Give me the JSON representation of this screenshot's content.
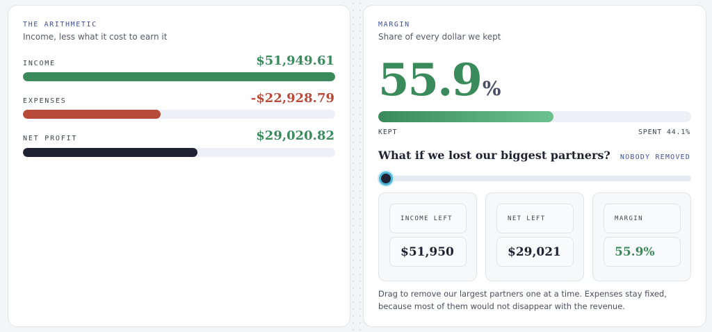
{
  "arithmetic": {
    "kicker": "THE ARITHMETIC",
    "subtitle": "Income, less what it cost to earn it",
    "rows": [
      {
        "label": "INCOME",
        "amount": "$51,949.61",
        "fraction": 1.0,
        "color": "#3a8a5c",
        "amount_color": "#3a8a5c"
      },
      {
        "label": "EXPENSES",
        "amount": "-$22,928.79",
        "fraction": 0.4414,
        "color": "#b84a3a",
        "amount_color": "#b84a3a"
      },
      {
        "label": "NET PROFIT",
        "amount": "$29,020.82",
        "fraction": 0.5586,
        "color": "#1f2233",
        "amount_color": "#3a8a5c"
      }
    ]
  },
  "margin": {
    "kicker": "MARGIN",
    "subtitle": "Share of every dollar we kept",
    "value": "55.9",
    "unit": "%",
    "kept_fraction": 0.559,
    "kept_label": "KEPT",
    "spent_label": "SPENT 44.1%",
    "question": "What if we lost our biggest partners?",
    "status": "NOBODY REMOVED",
    "slider_value": 0,
    "stats": [
      {
        "name": "INCOME LEFT",
        "value": "$51,950",
        "color": "#1f2233"
      },
      {
        "name": "NET LEFT",
        "value": "$29,021",
        "color": "#1f2233"
      },
      {
        "name": "MARGIN",
        "value": "55.9%",
        "color": "#3a8a5c"
      }
    ],
    "note": "Drag to remove our largest partners one at a time. Expenses stay fixed, because most of them would not disappear with the revenue."
  }
}
